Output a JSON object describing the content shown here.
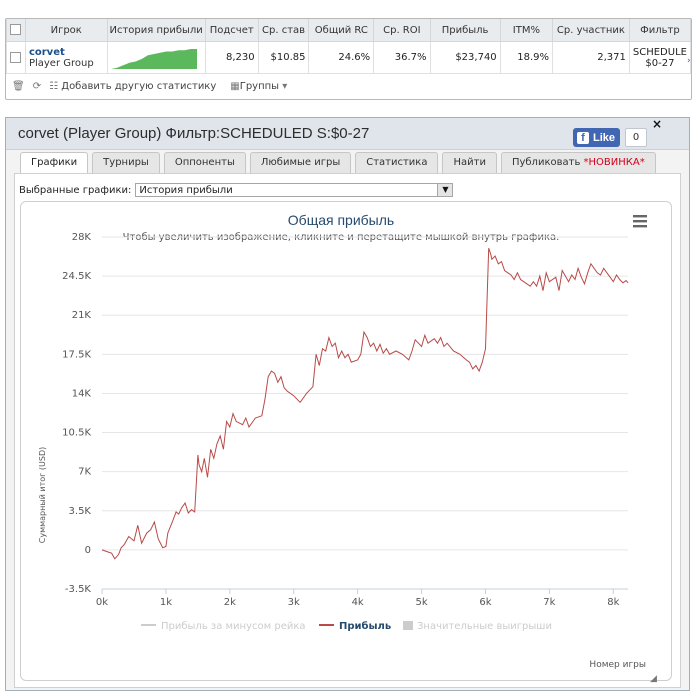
{
  "stats_table": {
    "headers": [
      "Игрок",
      "История прибыли",
      "Подсчет",
      "Ср. став",
      "Общий RC",
      "Ср. ROI",
      "Прибыль",
      "ITM%",
      "Ср. участник",
      "Фильтр"
    ],
    "row": {
      "player_name": "corvet",
      "player_group": "Player Group",
      "count": "8,230",
      "avg_stake": "$10.85",
      "total_rc": "24.6%",
      "avg_roi": "36.7%",
      "profit": "$23,740",
      "itm": "18.9%",
      "avg_entrants": "2,371",
      "filter_line1": "SCHEDULE",
      "filter_line2": "$0-27"
    },
    "footer": {
      "delete_icon": "trash-icon",
      "refresh_icon": "refresh-icon",
      "add_stat_icon": "add-icon",
      "add_stat_label": "Добавить другую статистику",
      "groups_icon": "grid-icon",
      "groups_label": "Группы"
    }
  },
  "panel": {
    "title": "corvet (Player Group) Фильтр:SCHEDULED S:$0-27",
    "like_label": "Like",
    "like_count": "0",
    "close_label": "×",
    "tabs": [
      {
        "label": "Графики",
        "active": true
      },
      {
        "label": "Турниры"
      },
      {
        "label": "Оппоненты"
      },
      {
        "label": "Любимые игры"
      },
      {
        "label": "Статистика"
      },
      {
        "label": "Найти"
      },
      {
        "label": "Публиковать ",
        "badge": "*НОВИНКА*"
      }
    ],
    "chart_select_label": "Выбранные графики:",
    "chart_select_value": "История прибыли"
  },
  "chart_data": {
    "type": "line",
    "title": "Общая прибыль",
    "subtitle": "Чтобы увеличить изображение, кликните и перетащите мышкой внутрь графика.",
    "xlabel": "Номер игры",
    "ylabel": "Суммарный итог (USD)",
    "xlim": [
      0,
      8230
    ],
    "ylim": [
      -3500,
      28000
    ],
    "x_ticks": [
      0,
      1000,
      2000,
      3000,
      4000,
      5000,
      6000,
      7000,
      8000
    ],
    "x_tick_labels": [
      "0k",
      "1k",
      "2k",
      "3k",
      "4k",
      "5k",
      "6k",
      "7k",
      "8k"
    ],
    "y_ticks": [
      -3500,
      0,
      3500,
      7000,
      10500,
      14000,
      17500,
      21000,
      24500,
      28000
    ],
    "y_tick_labels": [
      "-3.5K",
      "0",
      "3.5K",
      "7K",
      "10.5K",
      "14K",
      "17.5K",
      "21K",
      "24.5K",
      "28K"
    ],
    "grid": "horizontal",
    "legend_position": "bottom",
    "legend": [
      {
        "name": "Прибыль за минусом рейка",
        "color": "#cccccc",
        "visible": false
      },
      {
        "name": "Прибыль",
        "color": "#b94a48",
        "visible": true
      },
      {
        "name": "Значительные выигрыши",
        "color": "#cccccc",
        "visible": false
      }
    ],
    "series": [
      {
        "name": "Прибыль",
        "color": "#b94a48",
        "x": [
          0,
          100,
          150,
          200,
          260,
          300,
          350,
          420,
          500,
          560,
          620,
          700,
          760,
          820,
          880,
          950,
          1000,
          1030,
          1100,
          1160,
          1200,
          1250,
          1300,
          1350,
          1400,
          1450,
          1500,
          1520,
          1560,
          1600,
          1650,
          1700,
          1750,
          1800,
          1850,
          1900,
          1950,
          2000,
          2050,
          2100,
          2200,
          2250,
          2300,
          2400,
          2500,
          2550,
          2600,
          2650,
          2700,
          2750,
          2800,
          2850,
          2900,
          3000,
          3100,
          3200,
          3300,
          3350,
          3400,
          3450,
          3500,
          3550,
          3600,
          3650,
          3700,
          3750,
          3800,
          3850,
          3900,
          4000,
          4050,
          4100,
          4150,
          4200,
          4250,
          4300,
          4350,
          4400,
          4450,
          4500,
          4600,
          4700,
          4800,
          4850,
          4900,
          5000,
          5050,
          5100,
          5200,
          5250,
          5300,
          5350,
          5400,
          5500,
          5600,
          5700,
          5750,
          5800,
          5850,
          5900,
          5950,
          6000,
          6050,
          6080,
          6100,
          6150,
          6200,
          6250,
          6300,
          6350,
          6400,
          6450,
          6500,
          6550,
          6600,
          6700,
          6750,
          6800,
          6850,
          6900,
          6950,
          7000,
          7100,
          7150,
          7200,
          7300,
          7350,
          7400,
          7450,
          7500,
          7550,
          7600,
          7650,
          7700,
          7750,
          7800,
          7850,
          7900,
          7950,
          8000,
          8050,
          8100,
          8150,
          8200,
          8230
        ],
        "y": [
          0,
          -200,
          -300,
          -800,
          -400,
          200,
          500,
          1200,
          800,
          2200,
          600,
          1500,
          1800,
          2500,
          1000,
          200,
          300,
          1500,
          2500,
          3400,
          3200,
          3800,
          4200,
          3300,
          3600,
          3400,
          8500,
          7600,
          7000,
          8200,
          6500,
          9000,
          8200,
          9500,
          10200,
          9000,
          11500,
          11000,
          12200,
          11500,
          11200,
          11800,
          11000,
          11800,
          12000,
          13500,
          15500,
          16000,
          15800,
          15000,
          15500,
          14500,
          14200,
          13800,
          13200,
          14000,
          14600,
          17500,
          16500,
          18000,
          17800,
          19000,
          18200,
          18500,
          17200,
          17800,
          17200,
          17500,
          16800,
          17000,
          17500,
          19500,
          19000,
          18200,
          18500,
          17800,
          18400,
          17600,
          18000,
          17500,
          17800,
          17500,
          17000,
          17800,
          18800,
          18200,
          19200,
          18500,
          18900,
          18500,
          19000,
          18200,
          18500,
          17800,
          17500,
          17000,
          16800,
          16200,
          16500,
          16000,
          16800,
          18000,
          27000,
          26500,
          26000,
          26300,
          25600,
          25800,
          25000,
          24800,
          24600,
          24200,
          24800,
          24200,
          24000,
          23600,
          24000,
          23600,
          24500,
          23200,
          24800,
          24000,
          24400,
          23200,
          25000,
          24000,
          24600,
          24200,
          25200,
          24400,
          23800,
          24800,
          25600,
          25200,
          24800,
          24600,
          25200,
          24800,
          24400,
          24000,
          24600,
          24200,
          23900,
          24100,
          23900
        ]
      }
    ]
  },
  "mini_sparkline": {
    "color": "#5cb85c",
    "values": [
      0,
      1,
      3,
      5,
      6,
      8,
      11,
      12,
      13,
      14,
      14,
      15,
      15,
      16,
      16
    ]
  }
}
